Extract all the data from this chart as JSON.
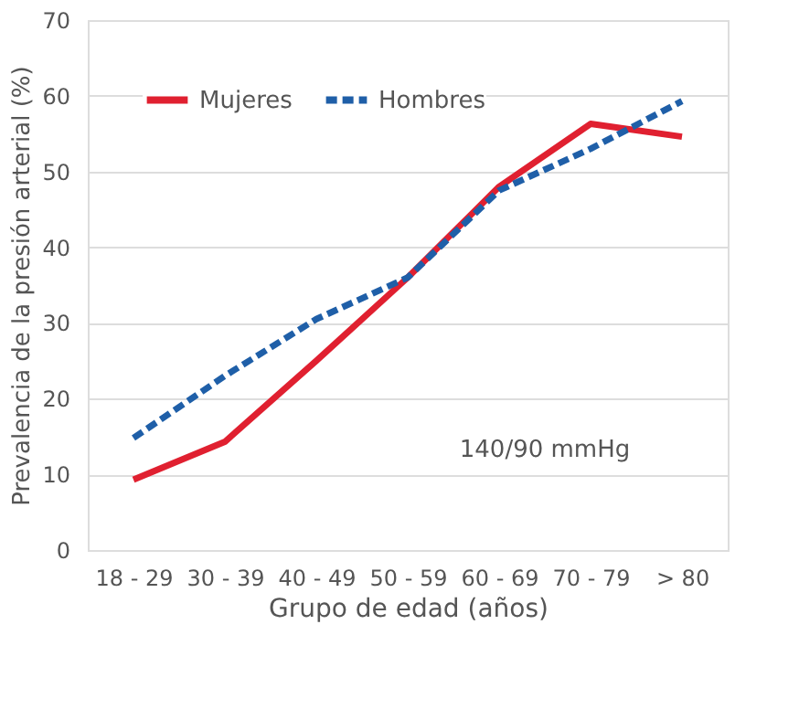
{
  "chart_data": {
    "type": "line",
    "xlabel": "Grupo de edad (años)",
    "ylabel": "Prevalencia de la presión arterial (%)",
    "categories": [
      "18 - 29",
      "30 - 39",
      "40 - 49",
      "50 - 59",
      "60 - 69",
      "70 - 79",
      "> 80"
    ],
    "series": [
      {
        "name": "Mujeres",
        "color": "#e02030",
        "line_style": "solid",
        "values": [
          9.3,
          14.3,
          25,
          36,
          48,
          56.3,
          54.6
        ]
      },
      {
        "name": "Hombres",
        "color": "#1f5fa8",
        "line_style": "dashed",
        "values": [
          14.8,
          23,
          30.5,
          36,
          47.5,
          53,
          59.3
        ]
      }
    ],
    "ylim": [
      0,
      70
    ],
    "yticks": [
      0,
      10,
      20,
      30,
      40,
      50,
      60,
      70
    ],
    "grid": "y",
    "legend": "top left",
    "marker": "none",
    "annotations": [
      "140/90 mmHg"
    ]
  }
}
